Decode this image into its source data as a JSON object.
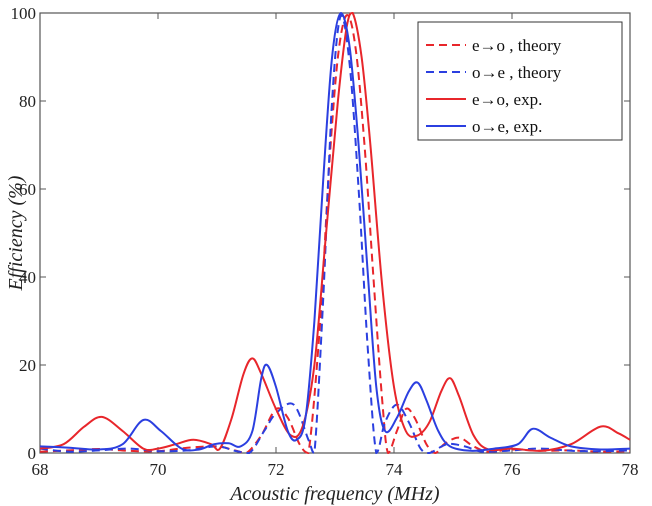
{
  "chart_data": {
    "type": "line",
    "title": "",
    "xlabel": "Acoustic frequency (MHz)",
    "ylabel": "Efficiency (%)",
    "xlim": [
      68,
      78
    ],
    "ylim": [
      0,
      100
    ],
    "xticks": [
      68,
      70,
      72,
      74,
      76,
      78
    ],
    "yticks": [
      0,
      20,
      40,
      60,
      80,
      100
    ],
    "grid": false,
    "legend_position": "top-right",
    "series": [
      {
        "name": "e→o , theory",
        "color": "#e8262b",
        "dash": "dashed",
        "points": [
          [
            68.0,
            0.3
          ],
          [
            68.5,
            0.6
          ],
          [
            69.0,
            0.9
          ],
          [
            69.5,
            0.5
          ],
          [
            70.0,
            0.4
          ],
          [
            70.5,
            1.2
          ],
          [
            71.0,
            1.5
          ],
          [
            71.3,
            0.6
          ],
          [
            71.5,
            0.0
          ],
          [
            71.75,
            4.0
          ],
          [
            72.0,
            10.0
          ],
          [
            72.2,
            8.0
          ],
          [
            72.4,
            2.0
          ],
          [
            72.55,
            0.0
          ],
          [
            72.75,
            30.0
          ],
          [
            72.9,
            65.0
          ],
          [
            73.05,
            90.0
          ],
          [
            73.2,
            99.5
          ],
          [
            73.35,
            92.0
          ],
          [
            73.5,
            70.0
          ],
          [
            73.65,
            40.0
          ],
          [
            73.8,
            12.0
          ],
          [
            73.9,
            0.0
          ],
          [
            74.05,
            5.0
          ],
          [
            74.2,
            10.0
          ],
          [
            74.35,
            8.0
          ],
          [
            74.55,
            2.0
          ],
          [
            74.7,
            0.0
          ],
          [
            74.85,
            2.0
          ],
          [
            75.1,
            3.5
          ],
          [
            75.35,
            1.5
          ],
          [
            75.6,
            0.3
          ],
          [
            76.0,
            0.8
          ],
          [
            76.5,
            0.5
          ],
          [
            77.0,
            0.6
          ],
          [
            77.5,
            0.3
          ],
          [
            78.0,
            0.4
          ]
        ]
      },
      {
        "name": "o→e , theory",
        "color": "#2b3fe0",
        "dash": "dashed",
        "points": [
          [
            68.0,
            1.0
          ],
          [
            68.5,
            0.3
          ],
          [
            69.0,
            0.6
          ],
          [
            69.5,
            1.0
          ],
          [
            70.0,
            0.4
          ],
          [
            70.5,
            0.6
          ],
          [
            71.0,
            1.5
          ],
          [
            71.3,
            0.5
          ],
          [
            71.55,
            0.0
          ],
          [
            71.8,
            5.0
          ],
          [
            72.0,
            9.0
          ],
          [
            72.3,
            11.0
          ],
          [
            72.55,
            3.0
          ],
          [
            72.65,
            0.0
          ],
          [
            72.8,
            35.0
          ],
          [
            72.95,
            80.0
          ],
          [
            73.1,
            99.5
          ],
          [
            73.25,
            88.0
          ],
          [
            73.4,
            60.0
          ],
          [
            73.55,
            25.0
          ],
          [
            73.7,
            0.0
          ],
          [
            73.85,
            7.0
          ],
          [
            74.05,
            11.0
          ],
          [
            74.25,
            7.0
          ],
          [
            74.45,
            1.0
          ],
          [
            74.6,
            0.0
          ],
          [
            74.9,
            2.0
          ],
          [
            75.2,
            1.5
          ],
          [
            75.5,
            0.3
          ],
          [
            76.0,
            0.6
          ],
          [
            76.5,
            1.0
          ],
          [
            77.0,
            0.5
          ],
          [
            77.5,
            0.4
          ],
          [
            78.0,
            0.6
          ]
        ]
      },
      {
        "name": "e→o, exp.",
        "color": "#e8262b",
        "dash": "solid",
        "points": [
          [
            68.0,
            1.0
          ],
          [
            68.4,
            2.0
          ],
          [
            68.75,
            6.0
          ],
          [
            69.05,
            8.2
          ],
          [
            69.4,
            5.0
          ],
          [
            69.75,
            1.0
          ],
          [
            70.0,
            1.0
          ],
          [
            70.3,
            2.0
          ],
          [
            70.6,
            3.0
          ],
          [
            70.9,
            2.0
          ],
          [
            71.05,
            1.0
          ],
          [
            71.25,
            8.0
          ],
          [
            71.45,
            18.0
          ],
          [
            71.6,
            21.5
          ],
          [
            71.75,
            18.0
          ],
          [
            72.0,
            10.0
          ],
          [
            72.25,
            4.0
          ],
          [
            72.45,
            6.0
          ],
          [
            72.65,
            20.0
          ],
          [
            72.85,
            50.0
          ],
          [
            73.05,
            80.0
          ],
          [
            73.2,
            97.0
          ],
          [
            73.3,
            100.0
          ],
          [
            73.45,
            90.0
          ],
          [
            73.6,
            70.0
          ],
          [
            73.8,
            38.0
          ],
          [
            74.0,
            15.0
          ],
          [
            74.2,
            5.0
          ],
          [
            74.4,
            4.0
          ],
          [
            74.6,
            7.0
          ],
          [
            74.8,
            14.0
          ],
          [
            74.95,
            17.0
          ],
          [
            75.1,
            13.0
          ],
          [
            75.35,
            4.0
          ],
          [
            75.6,
            0.8
          ],
          [
            76.0,
            1.0
          ],
          [
            76.5,
            0.5
          ],
          [
            77.0,
            2.0
          ],
          [
            77.5,
            6.0
          ],
          [
            77.8,
            4.5
          ],
          [
            78.0,
            3.0
          ]
        ]
      },
      {
        "name": "o→e, exp.",
        "color": "#2b3fe0",
        "dash": "solid",
        "points": [
          [
            68.0,
            1.5
          ],
          [
            68.5,
            1.2
          ],
          [
            69.0,
            0.8
          ],
          [
            69.4,
            2.0
          ],
          [
            69.75,
            7.5
          ],
          [
            70.05,
            5.0
          ],
          [
            70.4,
            1.0
          ],
          [
            70.7,
            0.8
          ],
          [
            70.95,
            2.0
          ],
          [
            71.2,
            2.2
          ],
          [
            71.4,
            1.5
          ],
          [
            71.6,
            5.0
          ],
          [
            71.75,
            17.0
          ],
          [
            71.85,
            20.0
          ],
          [
            72.0,
            15.0
          ],
          [
            72.2,
            5.0
          ],
          [
            72.35,
            3.0
          ],
          [
            72.5,
            8.0
          ],
          [
            72.65,
            30.0
          ],
          [
            72.8,
            62.0
          ],
          [
            72.95,
            90.0
          ],
          [
            73.1,
            100.0
          ],
          [
            73.25,
            92.0
          ],
          [
            73.4,
            70.0
          ],
          [
            73.55,
            42.0
          ],
          [
            73.7,
            15.0
          ],
          [
            73.85,
            5.0
          ],
          [
            74.05,
            8.0
          ],
          [
            74.25,
            14.0
          ],
          [
            74.4,
            16.0
          ],
          [
            74.55,
            12.0
          ],
          [
            74.75,
            5.0
          ],
          [
            74.95,
            1.5
          ],
          [
            75.3,
            0.5
          ],
          [
            75.7,
            1.0
          ],
          [
            76.1,
            2.0
          ],
          [
            76.35,
            5.5
          ],
          [
            76.65,
            3.5
          ],
          [
            77.0,
            1.5
          ],
          [
            77.5,
            0.8
          ],
          [
            78.0,
            1.0
          ]
        ]
      }
    ]
  }
}
